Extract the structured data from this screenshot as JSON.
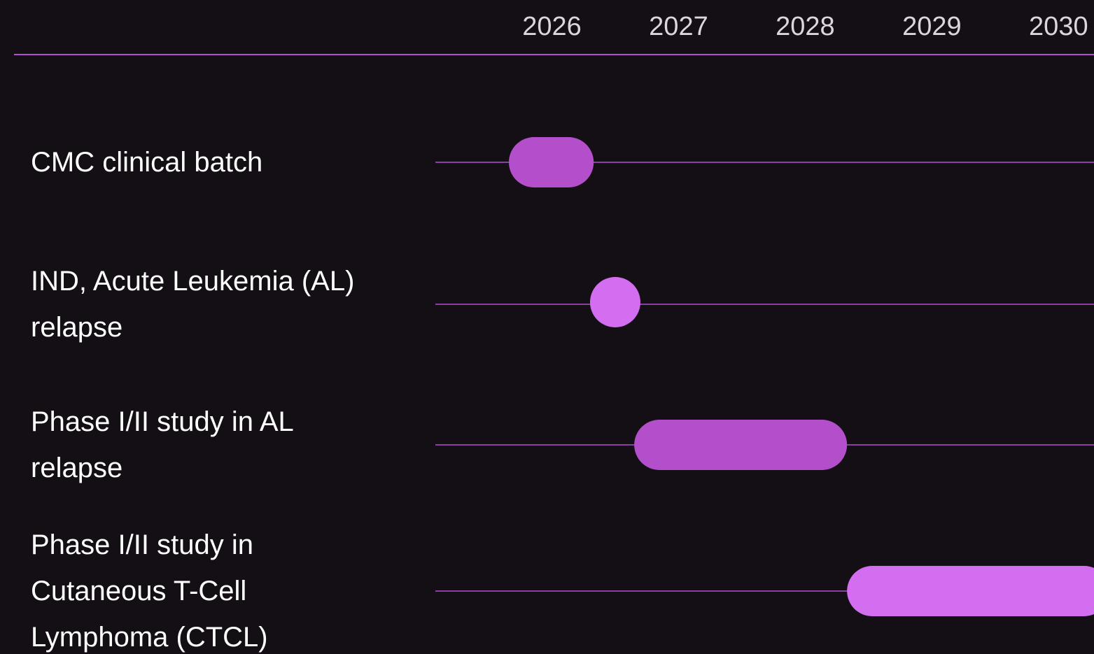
{
  "chart_data": {
    "type": "gantt",
    "xlim": [
      2025.08,
      2030.28
    ],
    "xticks": [
      2026,
      2027,
      2028,
      2029,
      2030
    ],
    "tasks": [
      {
        "name": "CMC clinical batch",
        "start": 2025.66,
        "end": 2026.33,
        "color": "#b44fcc"
      },
      {
        "name": "IND, Acute Leukemia (AL) relapse",
        "date": 2026.5,
        "color": "#d46ef0"
      },
      {
        "name": "Phase I/II study in AL relapse",
        "start": 2026.65,
        "end": 2028.33,
        "color": "#b44fcc"
      },
      {
        "name": "Phase I/II study in Cutaneous T-Cell Lymphoma (CTCL)",
        "start": 2028.33,
        "end": 2030.4,
        "color": "#d46ef0"
      }
    ]
  }
}
